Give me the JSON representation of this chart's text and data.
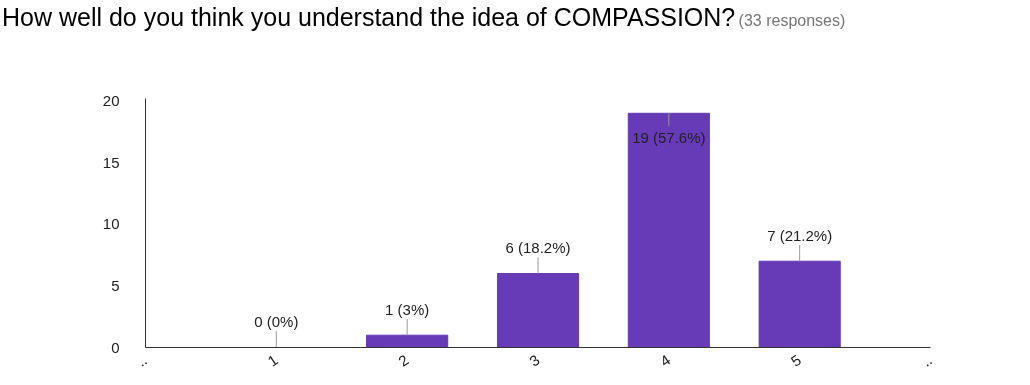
{
  "chart_data": {
    "type": "bar",
    "title": "How well do you think you understand the idea of COMPASSION?",
    "subtitle": "(33 responses)",
    "categories": [
      "..",
      "1",
      "2",
      "3",
      "4",
      "5",
      ".."
    ],
    "values": [
      null,
      0,
      1,
      6,
      19,
      7,
      null
    ],
    "value_labels": [
      null,
      "0 (0%)",
      "1 (3%)",
      "6 (18.2%)",
      "19 (57.6%)",
      "7 (21.2%)",
      null
    ],
    "color": "#673ab7",
    "ylim": [
      0,
      20.2
    ],
    "yticks": [
      0,
      5,
      10,
      15,
      20
    ],
    "grid": false
  }
}
